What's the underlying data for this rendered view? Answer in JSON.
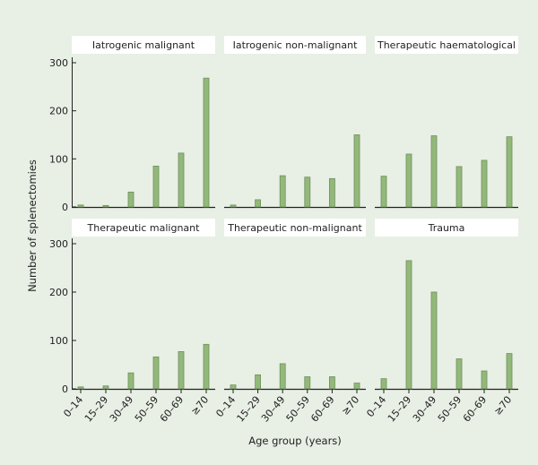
{
  "chart_data": {
    "type": "bar",
    "layout": "faceted 2x3, shared axes",
    "xlabel": "Age group (years)",
    "ylabel": "Number of splenectomies",
    "ylim": [
      0,
      300
    ],
    "yticks": [
      "0",
      "100",
      "200",
      "300"
    ],
    "categories": [
      "0–14",
      "15–29",
      "30–49",
      "50–59",
      "60–69",
      "≥70"
    ],
    "grid": false,
    "colors": {
      "background": "#e8efe5",
      "bar": "#93b97a",
      "bar_edge": "#6f8f5a",
      "panel_header": "#ffffff"
    },
    "panels": [
      {
        "title": "Iatrogenic malignant",
        "values": [
          4,
          3,
          31,
          85,
          112,
          268
        ]
      },
      {
        "title": "Iatrogenic non-malignant",
        "values": [
          4,
          15,
          65,
          62,
          59,
          150
        ]
      },
      {
        "title": "Therapeutic haematological",
        "values": [
          64,
          110,
          148,
          84,
          97,
          146
        ]
      },
      {
        "title": "Therapeutic malignant",
        "values": [
          4,
          6,
          33,
          66,
          77,
          92
        ]
      },
      {
        "title": "Therapeutic non-malignant",
        "values": [
          8,
          29,
          52,
          25,
          25,
          12
        ]
      },
      {
        "title": "Trauma",
        "values": [
          21,
          265,
          200,
          62,
          37,
          73
        ]
      }
    ]
  }
}
